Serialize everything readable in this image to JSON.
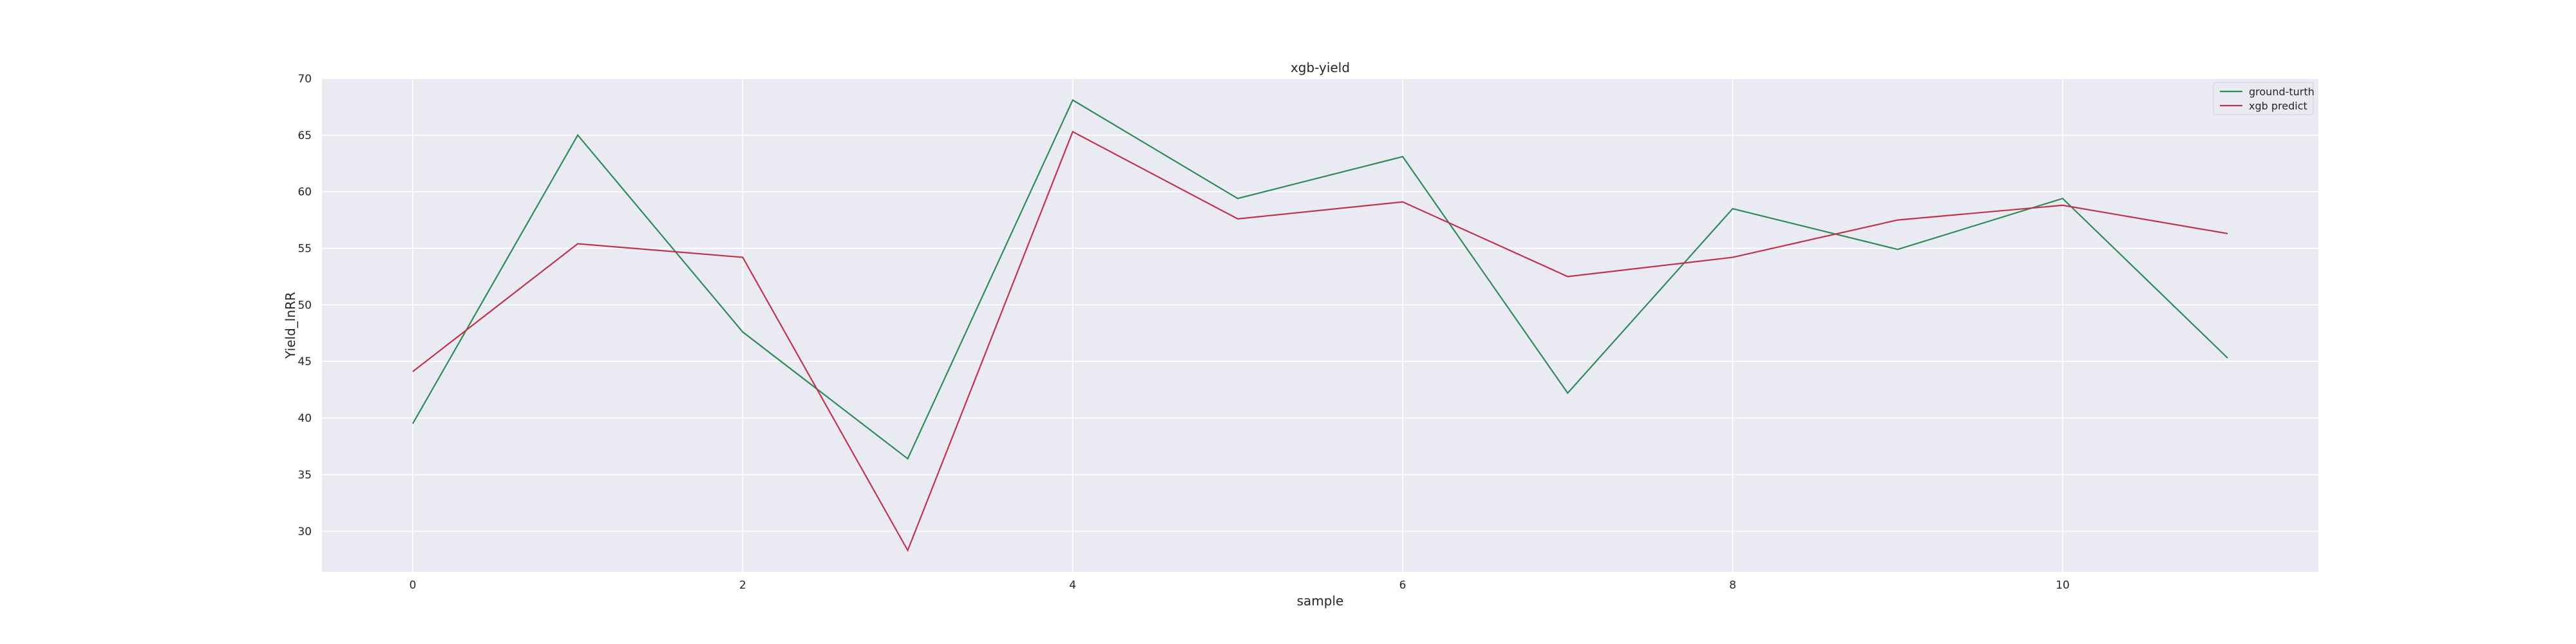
{
  "chart_data": {
    "type": "line",
    "title": "xgb-yield",
    "xlabel": "sample",
    "ylabel": "Yield_lnRR",
    "x": [
      0,
      1,
      2,
      3,
      4,
      5,
      6,
      7,
      8,
      9,
      10,
      11
    ],
    "xlim": [
      -0.55,
      11.55
    ],
    "ylim": [
      26.4,
      70
    ],
    "xticks": [
      0,
      2,
      4,
      6,
      8,
      10
    ],
    "yticks": [
      30,
      35,
      40,
      45,
      50,
      55,
      60,
      65,
      70
    ],
    "grid": true,
    "legend_position": "top-right",
    "background": "#eaeaf2",
    "series": [
      {
        "name": "ground-turth",
        "color": "#2e8b57",
        "values": [
          39.5,
          65.0,
          47.6,
          36.4,
          68.1,
          59.4,
          63.1,
          42.2,
          58.5,
          54.9,
          59.4,
          45.3
        ]
      },
      {
        "name": "xgb predict",
        "color": "#c0334d",
        "values": [
          44.1,
          55.4,
          54.2,
          28.3,
          65.3,
          57.6,
          59.1,
          52.5,
          54.2,
          57.5,
          58.8,
          56.3
        ]
      }
    ]
  }
}
